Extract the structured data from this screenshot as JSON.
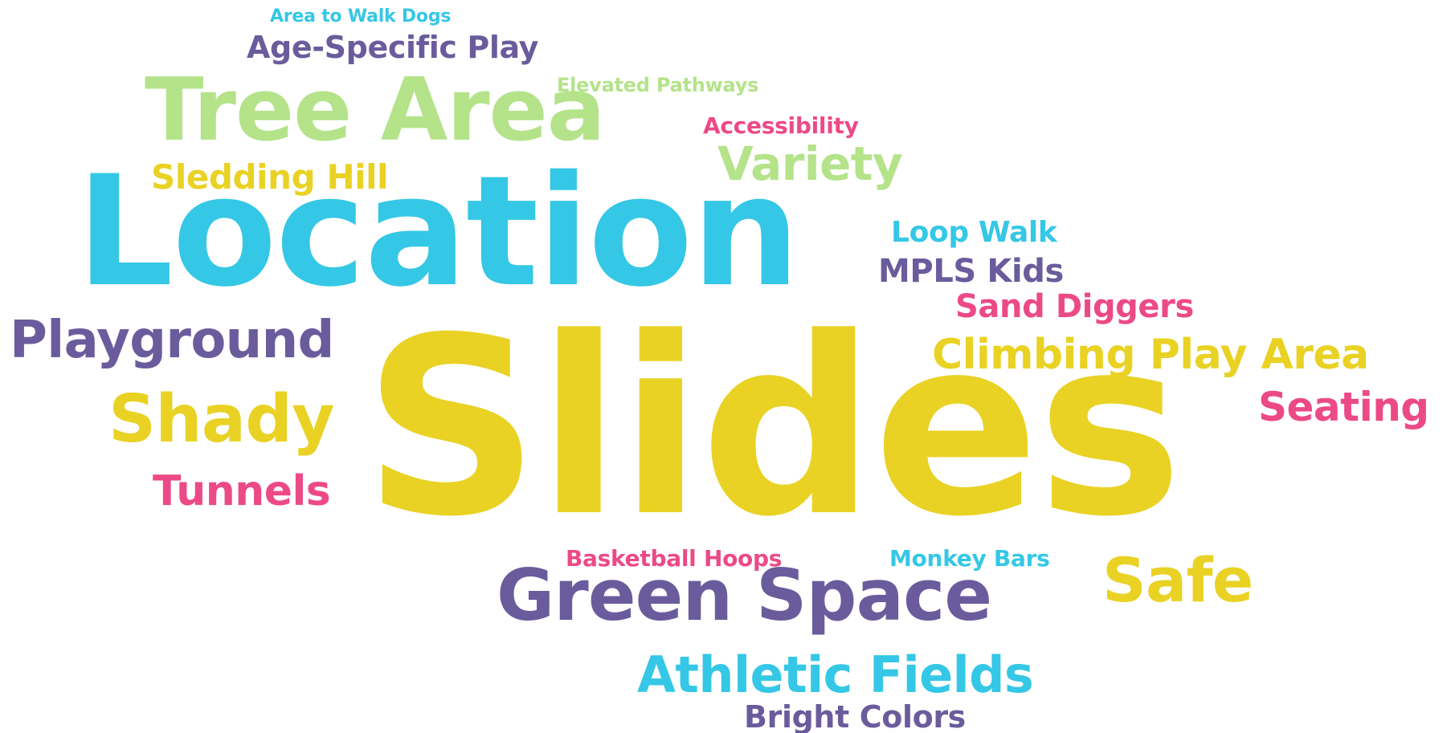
{
  "colors": {
    "pink": "#ec4a86",
    "cyan": "#35c7e6",
    "yellow": "#e9d224",
    "purple": "#6a5c9c",
    "green": "#b4e38a"
  },
  "words": {
    "area_to_walk_dogs": "Area to Walk Dogs",
    "age_specific_play": "Age-Specific Play",
    "elevated_pathways": "Elevated Pathways",
    "tree_area": "Tree Area",
    "accessibility": "Accessibility",
    "variety": "Variety",
    "sledding_hill": "Sledding Hill",
    "location": "Location",
    "loop_walk": "Loop Walk",
    "mpls_kids": "MPLS Kids",
    "sand_diggers": "Sand Diggers",
    "playground": "Playground",
    "climbing_play_area": "Climbing Play Area",
    "slides": "Slides",
    "seating": "Seating",
    "shady": "Shady",
    "tunnels": "Tunnels",
    "basketball_hoops": "Basketball Hoops",
    "monkey_bars": "Monkey Bars",
    "green_space": "Green Space",
    "safe": "Safe",
    "athletic_fields": "Athletic Fields",
    "bright_colors": "Bright Colors"
  }
}
